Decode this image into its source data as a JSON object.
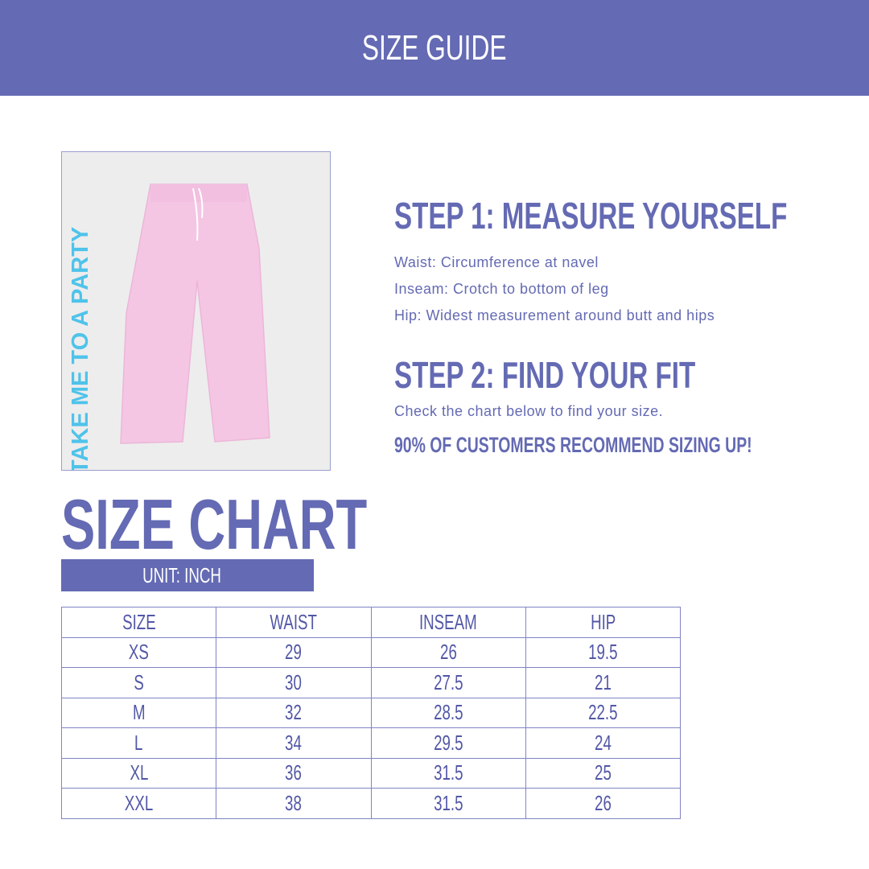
{
  "header": {
    "title": "SIZE GUIDE"
  },
  "product_image": {
    "print_text": "TAKE ME TO A PARTY",
    "colors": {
      "pants": "#f4c6e4",
      "print": "#4fc3ea"
    }
  },
  "step1": {
    "title": "STEP 1: MEASURE YOURSELF",
    "lines": [
      "Waist: Circumference at navel",
      "Inseam: Crotch to bottom of leg",
      "Hip: Widest measurement around butt and hips"
    ]
  },
  "step2": {
    "title": "STEP 2: FIND YOUR FIT",
    "line": "Check the chart below to find your size.",
    "note": "90% OF CUSTOMERS RECOMMEND SIZING UP!"
  },
  "size_chart": {
    "title": "SIZE CHART",
    "unit": "UNIT: INCH",
    "headers": [
      "SIZE",
      "WAIST",
      "INSEAM",
      "HIP"
    ],
    "rows": [
      [
        "XS",
        "29",
        "26",
        "19.5"
      ],
      [
        "S",
        "30",
        "27.5",
        "21"
      ],
      [
        "M",
        "32",
        "28.5",
        "22.5"
      ],
      [
        "L",
        "34",
        "29.5",
        "24"
      ],
      [
        "XL",
        "36",
        "31.5",
        "25"
      ],
      [
        "XXL",
        "38",
        "31.5",
        "26"
      ]
    ]
  },
  "colors": {
    "brand": "#646ab3"
  }
}
